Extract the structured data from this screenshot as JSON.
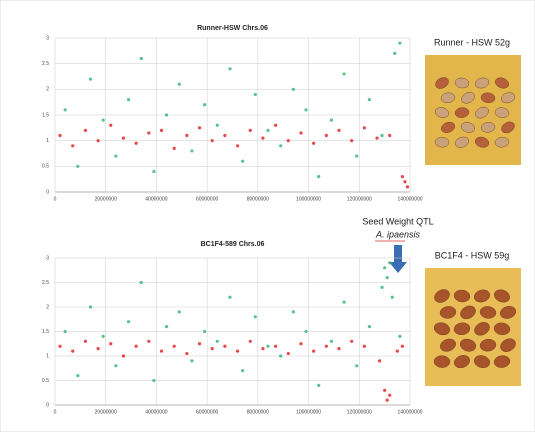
{
  "chart_data": [
    {
      "type": "scatter",
      "title": "Runner-HSW Chrs.06",
      "xlim": [
        0,
        140000000
      ],
      "xticks": [
        0,
        20000000,
        40000000,
        60000000,
        80000000,
        100000000,
        120000000,
        140000000
      ],
      "ylim": [
        0,
        3
      ],
      "yticks": [
        0,
        0.5,
        1,
        1.5,
        2,
        2.5,
        3
      ],
      "grid": true,
      "series": [
        {
          "color": "#e8262a",
          "x": [
            2000000,
            7000000,
            12000000,
            17000000,
            22000000,
            27000000,
            32000000,
            37000000,
            42000000,
            47000000,
            52000000,
            57000000,
            62000000,
            67000000,
            72000000,
            77000000,
            82000000,
            87000000,
            92000000,
            97000000,
            102000000,
            107000000,
            112000000,
            117000000,
            122000000,
            127000000,
            132000000,
            137000000,
            138000000,
            139000000
          ],
          "values": [
            1.1,
            0.9,
            1.2,
            1.0,
            1.3,
            1.05,
            0.95,
            1.15,
            1.2,
            0.85,
            1.1,
            1.25,
            1.0,
            1.1,
            0.9,
            1.2,
            1.05,
            1.3,
            1.0,
            1.15,
            0.95,
            1.1,
            1.2,
            1.0,
            1.25,
            1.05,
            1.1,
            0.3,
            0.2,
            0.1
          ]
        },
        {
          "color": "#3cb878",
          "x": [
            4000000,
            9000000,
            14000000,
            19000000,
            24000000,
            29000000,
            34000000,
            39000000,
            44000000,
            49000000,
            54000000,
            59000000,
            64000000,
            69000000,
            74000000,
            79000000,
            84000000,
            89000000,
            94000000,
            99000000,
            104000000,
            109000000,
            114000000,
            119000000,
            124000000,
            129000000,
            134000000,
            136000000
          ],
          "values": [
            1.6,
            0.5,
            2.2,
            1.4,
            0.7,
            1.8,
            2.6,
            0.4,
            1.5,
            2.1,
            0.8,
            1.7,
            1.3,
            2.4,
            0.6,
            1.9,
            1.2,
            0.9,
            2.0,
            1.6,
            0.3,
            1.4,
            2.3,
            0.7,
            1.8,
            1.1,
            2.7,
            2.9
          ]
        }
      ]
    },
    {
      "type": "scatter",
      "title": "BC1F4-589 Chrs.06",
      "xlim": [
        0,
        140000000
      ],
      "xticks": [
        0,
        20000000,
        40000000,
        60000000,
        80000000,
        100000000,
        120000000,
        140000000
      ],
      "ylim": [
        0,
        3
      ],
      "yticks": [
        0,
        0.5,
        1,
        1.5,
        2,
        2.5,
        3
      ],
      "grid": true,
      "series": [
        {
          "color": "#e8262a",
          "x": [
            2000000,
            7000000,
            12000000,
            17000000,
            22000000,
            27000000,
            32000000,
            37000000,
            42000000,
            47000000,
            52000000,
            57000000,
            62000000,
            67000000,
            72000000,
            77000000,
            82000000,
            87000000,
            92000000,
            97000000,
            102000000,
            107000000,
            112000000,
            117000000,
            122000000,
            128000000,
            130000000,
            131000000,
            132000000,
            135000000,
            137000000
          ],
          "values": [
            1.2,
            1.1,
            1.3,
            1.15,
            1.25,
            1.0,
            1.2,
            1.3,
            1.1,
            1.2,
            1.05,
            1.25,
            1.15,
            1.2,
            1.1,
            1.3,
            1.15,
            1.2,
            1.05,
            1.25,
            1.1,
            1.2,
            1.15,
            1.3,
            1.2,
            0.9,
            0.3,
            0.1,
            0.2,
            1.1,
            1.2
          ]
        },
        {
          "color": "#3cb878",
          "x": [
            4000000,
            9000000,
            14000000,
            19000000,
            24000000,
            29000000,
            34000000,
            39000000,
            44000000,
            49000000,
            54000000,
            59000000,
            64000000,
            69000000,
            74000000,
            79000000,
            84000000,
            89000000,
            94000000,
            99000000,
            104000000,
            109000000,
            114000000,
            119000000,
            124000000,
            129000000,
            130000000,
            131000000,
            132000000,
            133000000,
            136000000
          ],
          "values": [
            1.5,
            0.6,
            2.0,
            1.4,
            0.8,
            1.7,
            2.5,
            0.5,
            1.6,
            1.9,
            0.9,
            1.5,
            1.3,
            2.2,
            0.7,
            1.8,
            1.2,
            1.0,
            1.9,
            1.5,
            0.4,
            1.3,
            2.1,
            0.8,
            1.6,
            2.4,
            2.8,
            2.6,
            2.9,
            2.2,
            1.4
          ]
        }
      ]
    }
  ],
  "annotation": {
    "line1": "Seed Weight QTL",
    "line2": "A. ipaensis"
  },
  "photos": [
    {
      "caption": "Runner - HSW 52g"
    },
    {
      "caption": "BC1F4 - HSW 59g"
    }
  ]
}
